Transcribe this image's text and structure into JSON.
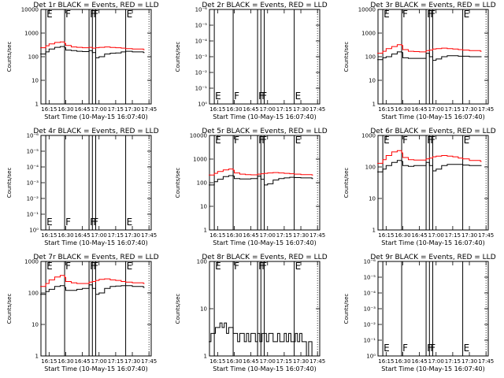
{
  "chart_data": [
    {
      "type": "line",
      "title": "Det 1r BLACK = Events, RED = LLD",
      "xlabel": "Start Time (10-May-15 16:07:40)",
      "ylabel": "Counts/sec",
      "scale": "log",
      "ylim": [
        1,
        10000
      ],
      "y_ticks": [
        "1",
        "10",
        "100",
        "1000",
        "10000"
      ],
      "x_ticks": [
        "16:15",
        "16:30",
        "16:45",
        "17:00",
        "17:15",
        "17:30",
        "17:45"
      ],
      "event_lines": [
        {
          "t": "16:12",
          "label": "E"
        },
        {
          "t": "16:29",
          "label": "F"
        },
        {
          "t": "16:51",
          "label": "F"
        },
        {
          "t": "16:54",
          "label": "F"
        },
        {
          "t": "16:57",
          "label": ""
        },
        {
          "t": "17:24",
          "label": "E"
        }
      ],
      "series": [
        {
          "color": "#000000",
          "x": [
            "16:07",
            "16:12",
            "16:15",
            "16:20",
            "16:25",
            "16:29",
            "16:30",
            "16:35",
            "16:40",
            "16:45",
            "16:51",
            "16:54",
            "16:57",
            "17:00",
            "17:05",
            "17:10",
            "17:15",
            "17:20",
            "17:24",
            "17:30",
            "17:40"
          ],
          "values": [
            130,
            160,
            210,
            250,
            270,
            240,
            190,
            180,
            170,
            165,
            180,
            150,
            90,
            100,
            130,
            140,
            145,
            160,
            170,
            160,
            150
          ]
        },
        {
          "color": "#ff0000",
          "x": [
            "16:07",
            "16:12",
            "16:15",
            "16:20",
            "16:25",
            "16:29",
            "16:30",
            "16:35",
            "16:40",
            "16:45",
            "16:51",
            "16:54",
            "16:57",
            "17:00",
            "17:05",
            "17:10",
            "17:15",
            "17:20",
            "17:24",
            "17:30",
            "17:40"
          ],
          "values": [
            240,
            290,
            350,
            400,
            420,
            360,
            300,
            260,
            250,
            240,
            250,
            230,
            240,
            250,
            260,
            245,
            240,
            230,
            220,
            210,
            200
          ]
        }
      ]
    },
    {
      "type": "line",
      "title": "Det 2r BLACK = Events, RED = LLD",
      "xlabel": "Start Time (10-May-15 16:07:40)",
      "ylabel": "Counts/sec",
      "scale": "log",
      "y_ticks": [
        "10⁰",
        "10⁻¹",
        "10⁻²",
        "10⁻³",
        "10⁻⁴",
        "10⁻⁵",
        "10⁻⁶"
      ],
      "x_ticks": [
        "16:15",
        "16:30",
        "16:45",
        "17:00",
        "17:15",
        "17:30",
        "17:45"
      ],
      "event_lines": [
        {
          "t": "16:12",
          "label": "E"
        },
        {
          "t": "16:29",
          "label": "F"
        },
        {
          "t": "16:51",
          "label": "F"
        },
        {
          "t": "16:54",
          "label": "F"
        },
        {
          "t": "16:57",
          "label": ""
        },
        {
          "t": "17:24",
          "label": "E"
        }
      ],
      "series": []
    },
    {
      "type": "line",
      "title": "Det 3r BLACK = Events, RED = LLD",
      "xlabel": "Start Time (10-May-15 16:07:40)",
      "ylabel": "Counts/sec",
      "scale": "log",
      "ylim": [
        1,
        10000
      ],
      "y_ticks": [
        "1",
        "10",
        "100",
        "1000",
        "10000"
      ],
      "x_ticks": [
        "16:15",
        "16:30",
        "16:45",
        "17:00",
        "17:15",
        "17:30",
        "17:45"
      ],
      "event_lines": [
        {
          "t": "16:12",
          "label": "E"
        },
        {
          "t": "16:29",
          "label": "F"
        },
        {
          "t": "16:51",
          "label": "F"
        },
        {
          "t": "16:54",
          "label": "F"
        },
        {
          "t": "16:57",
          "label": ""
        },
        {
          "t": "17:24",
          "label": "E"
        }
      ],
      "series": [
        {
          "color": "#000000",
          "x": [
            "16:07",
            "16:12",
            "16:15",
            "16:20",
            "16:25",
            "16:29",
            "16:30",
            "16:35",
            "16:40",
            "16:45",
            "16:51",
            "16:54",
            "16:57",
            "17:00",
            "17:05",
            "17:10",
            "17:15",
            "17:20",
            "17:24",
            "17:30",
            "17:40"
          ],
          "values": [
            75,
            90,
            100,
            130,
            160,
            150,
            90,
            85,
            85,
            85,
            140,
            100,
            70,
            80,
            100,
            110,
            110,
            105,
            105,
            100,
            100
          ]
        },
        {
          "color": "#ff0000",
          "x": [
            "16:07",
            "16:12",
            "16:15",
            "16:20",
            "16:25",
            "16:29",
            "16:30",
            "16:35",
            "16:40",
            "16:45",
            "16:51",
            "16:54",
            "16:57",
            "17:00",
            "17:05",
            "17:10",
            "17:15",
            "17:20",
            "17:24",
            "17:30",
            "17:40"
          ],
          "values": [
            140,
            170,
            220,
            270,
            320,
            300,
            200,
            170,
            165,
            160,
            180,
            190,
            210,
            220,
            230,
            220,
            210,
            200,
            190,
            180,
            170
          ]
        }
      ]
    },
    {
      "type": "line",
      "title": "Det 4r BLACK = Events, RED = LLD",
      "xlabel": "Start Time (10-May-15 16:07:40)",
      "ylabel": "Counts/sec",
      "scale": "log",
      "y_ticks": [
        "10⁰",
        "10⁻¹",
        "10⁻²",
        "10⁻³",
        "10⁻⁴",
        "10⁻⁵",
        "10⁻⁶"
      ],
      "x_ticks": [
        "16:15",
        "16:30",
        "16:45",
        "17:00",
        "17:15",
        "17:30",
        "17:45"
      ],
      "event_lines": [
        {
          "t": "16:12",
          "label": "E"
        },
        {
          "t": "16:29",
          "label": "F"
        },
        {
          "t": "16:51",
          "label": "F"
        },
        {
          "t": "16:54",
          "label": "F"
        },
        {
          "t": "16:57",
          "label": ""
        },
        {
          "t": "17:24",
          "label": "E"
        }
      ],
      "series": []
    },
    {
      "type": "line",
      "title": "Det 5r BLACK = Events, RED = LLD",
      "xlabel": "Start Time (10-May-15 16:07:40)",
      "ylabel": "Counts/sec",
      "scale": "log",
      "ylim": [
        1,
        10000
      ],
      "y_ticks": [
        "1",
        "10",
        "100",
        "1000",
        "10000"
      ],
      "x_ticks": [
        "16:15",
        "16:30",
        "16:45",
        "17:00",
        "17:15",
        "17:30",
        "17:45"
      ],
      "event_lines": [
        {
          "t": "16:12",
          "label": "E"
        },
        {
          "t": "16:29",
          "label": "F"
        },
        {
          "t": "16:51",
          "label": "F"
        },
        {
          "t": "16:54",
          "label": "F"
        },
        {
          "t": "16:57",
          "label": ""
        },
        {
          "t": "17:24",
          "label": "E"
        }
      ],
      "series": [
        {
          "color": "#000000",
          "x": [
            "16:07",
            "16:12",
            "16:15",
            "16:20",
            "16:25",
            "16:29",
            "16:30",
            "16:35",
            "16:40",
            "16:45",
            "16:51",
            "16:54",
            "16:57",
            "17:00",
            "17:05",
            "17:10",
            "17:15",
            "17:20",
            "17:24",
            "17:30",
            "17:40"
          ],
          "values": [
            80,
            110,
            140,
            180,
            200,
            190,
            150,
            145,
            145,
            150,
            190,
            140,
            80,
            90,
            130,
            150,
            160,
            170,
            165,
            160,
            150
          ]
        },
        {
          "color": "#ff0000",
          "x": [
            "16:07",
            "16:12",
            "16:15",
            "16:20",
            "16:25",
            "16:29",
            "16:30",
            "16:35",
            "16:40",
            "16:45",
            "16:51",
            "16:54",
            "16:57",
            "17:00",
            "17:05",
            "17:10",
            "17:15",
            "17:20",
            "17:24",
            "17:30",
            "17:40"
          ],
          "values": [
            210,
            250,
            300,
            350,
            380,
            340,
            260,
            230,
            220,
            215,
            230,
            240,
            250,
            260,
            270,
            260,
            250,
            240,
            230,
            220,
            210
          ]
        }
      ]
    },
    {
      "type": "line",
      "title": "Det 6r BLACK = Events, RED = LLD",
      "xlabel": "Start Time (10-May-15 16:07:40)",
      "ylabel": "Counts/sec",
      "scale": "log",
      "ylim": [
        1,
        1000
      ],
      "y_ticks": [
        "1",
        "10",
        "100",
        "1000"
      ],
      "x_ticks": [
        "16:15",
        "16:30",
        "16:45",
        "17:00",
        "17:15",
        "17:30",
        "17:45"
      ],
      "event_lines": [
        {
          "t": "16:12",
          "label": "E"
        },
        {
          "t": "16:29",
          "label": "F"
        },
        {
          "t": "16:51",
          "label": "F"
        },
        {
          "t": "16:54",
          "label": "F"
        },
        {
          "t": "16:57",
          "label": ""
        },
        {
          "t": "17:24",
          "label": "E"
        }
      ],
      "series": [
        {
          "color": "#000000",
          "x": [
            "16:07",
            "16:12",
            "16:15",
            "16:20",
            "16:25",
            "16:29",
            "16:30",
            "16:35",
            "16:40",
            "16:45",
            "16:51",
            "16:54",
            "16:57",
            "17:00",
            "17:05",
            "17:10",
            "17:15",
            "17:20",
            "17:24",
            "17:30",
            "17:40"
          ],
          "values": [
            70,
            85,
            110,
            140,
            160,
            150,
            110,
            105,
            110,
            110,
            140,
            110,
            75,
            85,
            110,
            120,
            120,
            120,
            115,
            110,
            110
          ]
        },
        {
          "color": "#ff0000",
          "x": [
            "16:07",
            "16:12",
            "16:15",
            "16:20",
            "16:25",
            "16:29",
            "16:30",
            "16:35",
            "16:40",
            "16:45",
            "16:51",
            "16:54",
            "16:57",
            "17:00",
            "17:05",
            "17:10",
            "17:15",
            "17:20",
            "17:24",
            "17:30",
            "17:40"
          ],
          "values": [
            130,
            170,
            230,
            300,
            330,
            280,
            200,
            170,
            165,
            165,
            180,
            190,
            210,
            220,
            230,
            220,
            210,
            190,
            180,
            160,
            150
          ]
        }
      ]
    },
    {
      "type": "line",
      "title": "Det 7r BLACK = Events, RED = LLD",
      "xlabel": "Start Time (10-May-15 16:07:40)",
      "ylabel": "Counts/sec",
      "scale": "log",
      "ylim": [
        1,
        1000
      ],
      "y_ticks": [
        "1",
        "10",
        "100",
        "1000"
      ],
      "x_ticks": [
        "16:15",
        "16:30",
        "16:45",
        "17:00",
        "17:15",
        "17:30",
        "17:45"
      ],
      "event_lines": [
        {
          "t": "16:12",
          "label": "E"
        },
        {
          "t": "16:29",
          "label": "F"
        },
        {
          "t": "16:51",
          "label": "F"
        },
        {
          "t": "16:54",
          "label": "F"
        },
        {
          "t": "16:57",
          "label": ""
        },
        {
          "t": "17:24",
          "label": "E"
        }
      ],
      "series": [
        {
          "color": "#000000",
          "x": [
            "16:07",
            "16:12",
            "16:15",
            "16:20",
            "16:25",
            "16:29",
            "16:30",
            "16:35",
            "16:40",
            "16:45",
            "16:51",
            "16:54",
            "16:57",
            "17:00",
            "17:05",
            "17:10",
            "17:15",
            "17:20",
            "17:24",
            "17:30",
            "17:40"
          ],
          "values": [
            90,
            110,
            130,
            160,
            170,
            150,
            120,
            120,
            130,
            140,
            180,
            140,
            90,
            100,
            140,
            160,
            165,
            170,
            170,
            160,
            150
          ]
        },
        {
          "color": "#ff0000",
          "x": [
            "16:07",
            "16:12",
            "16:15",
            "16:20",
            "16:25",
            "16:29",
            "16:30",
            "16:35",
            "16:40",
            "16:45",
            "16:51",
            "16:54",
            "16:57",
            "17:00",
            "17:05",
            "17:10",
            "17:15",
            "17:20",
            "17:24",
            "17:30",
            "17:40"
          ],
          "values": [
            160,
            200,
            260,
            320,
            360,
            310,
            230,
            210,
            200,
            200,
            220,
            230,
            250,
            270,
            280,
            260,
            250,
            230,
            220,
            210,
            200
          ]
        }
      ]
    },
    {
      "type": "line",
      "title": "Det 8r BLACK = Events, RED = LLD",
      "xlabel": "Start Time (10-May-15 16:07:40)",
      "ylabel": "Counts/sec",
      "scale": "log",
      "ylim": [
        1,
        100
      ],
      "y_ticks": [
        "1",
        "10",
        "100"
      ],
      "x_ticks": [
        "16:15",
        "16:30",
        "16:45",
        "17:00",
        "17:15",
        "17:30",
        "17:45"
      ],
      "event_lines": [
        {
          "t": "16:12",
          "label": "E"
        },
        {
          "t": "16:29",
          "label": "F"
        },
        {
          "t": "16:51",
          "label": "F"
        },
        {
          "t": "16:54",
          "label": "F"
        },
        {
          "t": "16:57",
          "label": ""
        },
        {
          "t": "17:24",
          "label": "E"
        }
      ],
      "series": [
        {
          "color": "#000000",
          "x": [
            "16:07",
            "16:09",
            "16:11",
            "16:13",
            "16:15",
            "16:17",
            "16:19",
            "16:21",
            "16:23",
            "16:25",
            "16:27",
            "16:29",
            "16:31",
            "16:33",
            "16:35",
            "16:37",
            "16:39",
            "16:41",
            "16:43",
            "16:45",
            "16:47",
            "16:49",
            "16:51",
            "16:53",
            "16:55",
            "16:57",
            "16:59",
            "17:01",
            "17:03",
            "17:05",
            "17:07",
            "17:09",
            "17:11",
            "17:13",
            "17:15",
            "17:17",
            "17:19",
            "17:21",
            "17:23",
            "17:25",
            "17:27",
            "17:29",
            "17:31",
            "17:33",
            "17:35",
            "17:37",
            "17:39",
            "17:40"
          ],
          "values": [
            2,
            3,
            3,
            4,
            4,
            5,
            4,
            5,
            3,
            4,
            4,
            3,
            3,
            2,
            3,
            3,
            2,
            3,
            2,
            3,
            3,
            2,
            3,
            2,
            3,
            3,
            2,
            3,
            3,
            2,
            2,
            3,
            2,
            2,
            3,
            2,
            3,
            2,
            2,
            3,
            2,
            3,
            2,
            2,
            1,
            2,
            2,
            1
          ]
        }
      ]
    },
    {
      "type": "line",
      "title": "Det 9r BLACK = Events, RED = LLD",
      "xlabel": "Start Time (10-May-15 16:07:40)",
      "ylabel": "Counts/sec",
      "scale": "log",
      "y_ticks": [
        "10⁰",
        "10⁻¹",
        "10⁻²",
        "10⁻³",
        "10⁻⁴",
        "10⁻⁵",
        "10⁻⁶"
      ],
      "x_ticks": [
        "16:15",
        "16:30",
        "16:45",
        "17:00",
        "17:15",
        "17:30",
        "17:45"
      ],
      "event_lines": [
        {
          "t": "16:12",
          "label": "E"
        },
        {
          "t": "16:29",
          "label": "F"
        },
        {
          "t": "16:51",
          "label": "F"
        },
        {
          "t": "16:54",
          "label": "F"
        },
        {
          "t": "16:57",
          "label": ""
        },
        {
          "t": "17:24",
          "label": "E"
        }
      ],
      "series": []
    }
  ]
}
